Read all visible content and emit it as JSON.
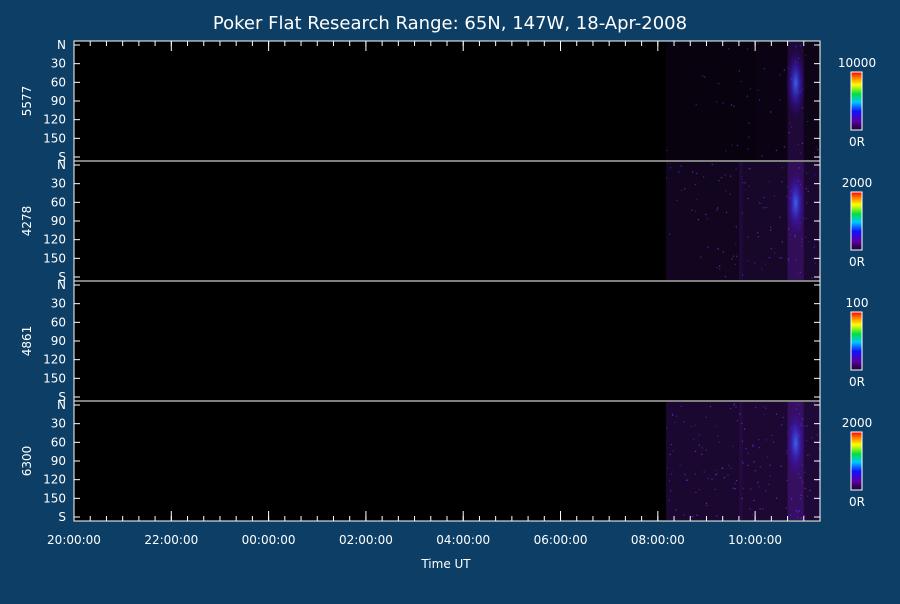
{
  "chart_data": {
    "type": "heatmap",
    "title": "Poker Flat Research Range: 65N, 147W, 18-Apr-2008",
    "xlabel": "Time UT",
    "x_tick_labels": [
      "20:00:00",
      "22:00:00",
      "00:00:00",
      "02:00:00",
      "04:00:00",
      "06:00:00",
      "08:00:00",
      "10:00:00"
    ],
    "y_tick_labels": [
      "N",
      "30",
      "60",
      "90",
      "120",
      "150",
      "S"
    ],
    "xlim": [
      "20:00:00",
      "11:20:00"
    ],
    "ylim": [
      "N",
      "S"
    ],
    "grid": false,
    "colormap": "rainbow (dark purple → blue → green → yellow → red)",
    "background_color": "#0d3f66",
    "panels": [
      {
        "label": "5577",
        "colorbar_max": "10000",
        "colorbar_min": "0R",
        "activity": [
          {
            "start": "08:10:00",
            "end": "10:00:00",
            "level": 0.08
          },
          {
            "start": "10:00:00",
            "end": "10:40:00",
            "level": 0.12
          },
          {
            "start": "10:40:00",
            "end": "11:00:00",
            "level": 0.35
          },
          {
            "start": "11:00:00",
            "end": "11:20:00",
            "level": 0.15
          }
        ]
      },
      {
        "label": "4278",
        "colorbar_max": "2000",
        "colorbar_min": "0R",
        "activity": [
          {
            "start": "08:10:00",
            "end": "09:40:00",
            "level": 0.2
          },
          {
            "start": "09:40:00",
            "end": "09:45:00",
            "level": 0.35
          },
          {
            "start": "09:45:00",
            "end": "10:40:00",
            "level": 0.25
          },
          {
            "start": "10:40:00",
            "end": "11:00:00",
            "level": 0.55
          },
          {
            "start": "11:00:00",
            "end": "11:20:00",
            "level": 0.3
          }
        ]
      },
      {
        "label": "4861",
        "colorbar_max": "100",
        "colorbar_min": "0R",
        "activity": []
      },
      {
        "label": "6300",
        "colorbar_max": "2000",
        "colorbar_min": "0R",
        "activity": [
          {
            "start": "08:10:00",
            "end": "09:40:00",
            "level": 0.3
          },
          {
            "start": "09:40:00",
            "end": "09:45:00",
            "level": 0.4
          },
          {
            "start": "09:45:00",
            "end": "10:40:00",
            "level": 0.32
          },
          {
            "start": "10:40:00",
            "end": "11:00:00",
            "level": 0.6
          },
          {
            "start": "11:00:00",
            "end": "11:20:00",
            "level": 0.35
          }
        ]
      }
    ]
  }
}
